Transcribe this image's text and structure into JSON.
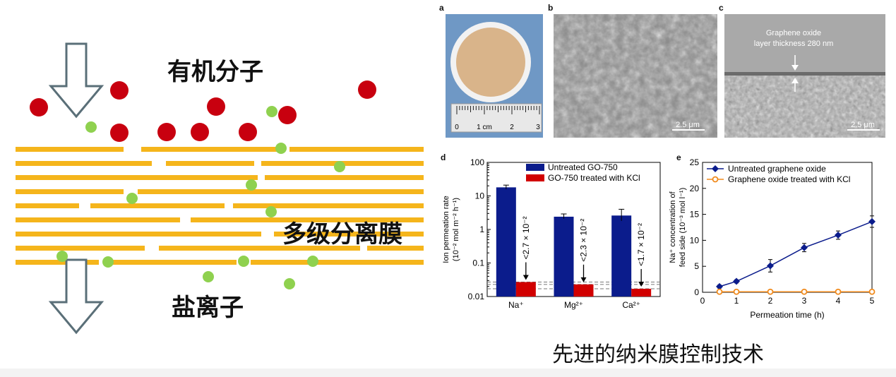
{
  "diagram": {
    "label_molecules": "有机分子",
    "label_membrane": "多级分离膜",
    "label_ions": "盐离子",
    "colors": {
      "layer": "#f5b51b",
      "molecule": "#c8000f",
      "ion": "#8fd14f",
      "arrow": "#5a6f78"
    }
  },
  "caption": "先进的纳米膜控制技术",
  "panels": {
    "a": {
      "label": "a",
      "scale_ticks": [
        "0",
        "1 cm",
        "2",
        "3"
      ]
    },
    "b": {
      "label": "b",
      "scale": "2.5 μm"
    },
    "c": {
      "label": "c",
      "annotation_line1": "Graphene oxide",
      "annotation_line2": "layer thickness 280 nm",
      "scale": "2.5 μm"
    },
    "d": {
      "label": "d"
    },
    "e": {
      "label": "e"
    }
  },
  "chart_data": [
    {
      "id": "d",
      "type": "bar",
      "categories": [
        "Na⁺",
        "Mg²⁺",
        "Ca²⁺"
      ],
      "ylabel_line1": "Ion permeation rate",
      "ylabel_line2": "(10⁻² mol m⁻² h⁻¹)",
      "yscale": "log",
      "ylim": [
        0.01,
        100
      ],
      "yticks": [
        {
          "v": 0.01,
          "t": "0.01"
        },
        {
          "v": 0.1,
          "t": "0.1"
        },
        {
          "v": 1,
          "t": "1"
        },
        {
          "v": 10,
          "t": "10"
        },
        {
          "v": 100,
          "t": "100"
        }
      ],
      "series": [
        {
          "name": "Untreated GO-750",
          "color": "#0b1c8c",
          "values": [
            18,
            2.4,
            2.6
          ],
          "err": [
            [
              16,
              21
            ],
            [
              2.1,
              2.9
            ],
            [
              1.8,
              4.0
            ]
          ]
        },
        {
          "name": "GO-750 treated with KCl",
          "color": "#d10000",
          "values": [
            0.027,
            0.023,
            0.017
          ]
        }
      ],
      "annotations": [
        "<2.7 × 10⁻²",
        "<2.3 × 10⁻²",
        "<1.7 × 10⁻²"
      ],
      "dashed_levels": [
        0.027,
        0.023,
        0.017
      ],
      "legend": "top-right"
    },
    {
      "id": "e",
      "type": "line",
      "xlabel": "Permeation time (h)",
      "ylabel_line1": "Na⁺ concentration of",
      "ylabel_line2": "feed side (10⁻³ mol l⁻¹)",
      "xlim": [
        0,
        5
      ],
      "ylim": [
        0,
        25
      ],
      "xticks": [
        0,
        1,
        2,
        3,
        4,
        5
      ],
      "yticks": [
        0,
        5,
        10,
        15,
        20,
        25
      ],
      "series": [
        {
          "name": "Untreated graphene oxide",
          "color": "#0b1c8c",
          "marker": "diamond",
          "x": [
            0.5,
            1,
            2,
            3,
            4,
            5
          ],
          "y": [
            1.1,
            2.1,
            5.1,
            8.6,
            11,
            13.6
          ],
          "err": [
            0.3,
            0.3,
            1.2,
            0.8,
            0.8,
            1.1
          ]
        },
        {
          "name": "Graphene oxide treated with KCl",
          "color": "#f08a1c",
          "marker": "circle",
          "x": [
            0.5,
            1,
            2,
            3,
            4,
            5
          ],
          "y": [
            0.1,
            0.1,
            0.1,
            0.1,
            0.1,
            0.1
          ],
          "err": [
            0,
            0,
            0,
            0,
            0,
            0
          ]
        }
      ],
      "legend": "top-left"
    }
  ]
}
